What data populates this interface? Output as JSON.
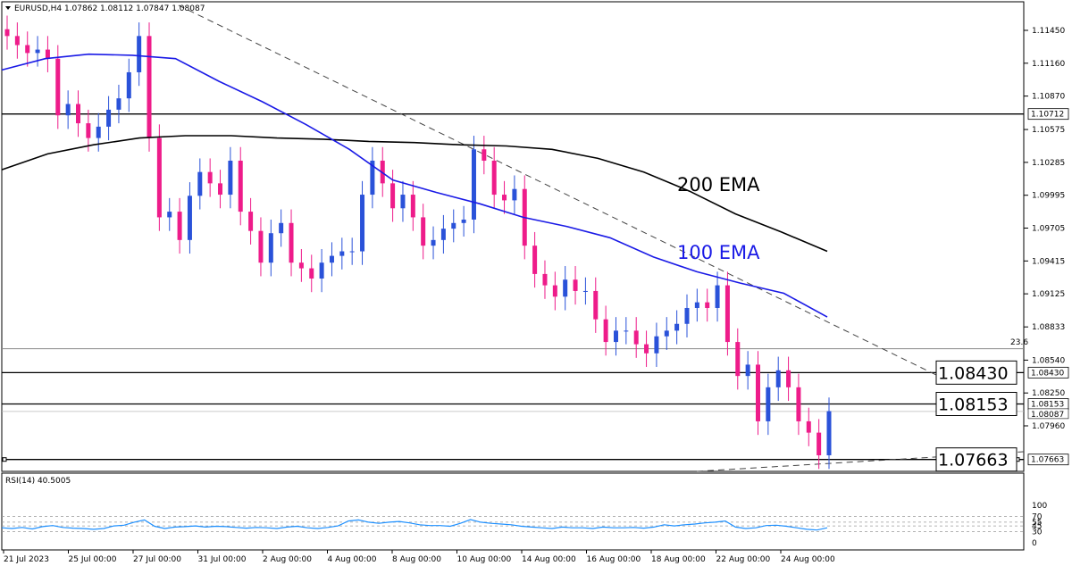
{
  "header": {
    "symbol_line": "EURUSD,H4  1.07862 1.08112 1.07847 1.08087"
  },
  "rsi_header": "RSI(14) 40.5005",
  "chart_data": {
    "type": "candlestick",
    "symbol": "EURUSD",
    "timeframe": "H4",
    "ohlc_current": {
      "open": 1.07862,
      "high": 1.08112,
      "low": 1.07847,
      "close": 1.08087
    },
    "price_ticks": [
      "1.11450",
      "1.11160",
      "1.10870",
      "1.10575",
      "1.10285",
      "1.09995",
      "1.09705",
      "1.09415",
      "1.09125",
      "1.08833",
      "1.08540",
      "1.08250",
      "1.07960"
    ],
    "price_range": [
      1.0753,
      1.116
    ],
    "time_ticks": [
      "21 Jul 2023",
      "25 Jul 00:00",
      "27 Jul 00:00",
      "31 Jul 00:00",
      "2 Aug 00:00",
      "4 Aug 00:00",
      "8 Aug 00:00",
      "10 Aug 00:00",
      "14 Aug 00:00",
      "16 Aug 00:00",
      "18 Aug 00:00",
      "22 Aug 00:00",
      "24 Aug 00:00"
    ],
    "horizontal_levels": [
      {
        "price": 1.10712,
        "axis_label": "1.10712"
      },
      {
        "price": 1.0843,
        "axis_label": "1.08430",
        "callout": "1.08430"
      },
      {
        "price": 1.08153,
        "axis_label": "1.08153",
        "callout": "1.08153"
      },
      {
        "price": 1.07663,
        "axis_label": "1.07663",
        "callout": "1.07663"
      }
    ],
    "fib_level": {
      "label": "23.6",
      "price": 1.0864
    },
    "current_price_label": "1.08087",
    "series": [
      {
        "name": "200 EMA",
        "color": "#000000",
        "values": [
          1.1022,
          1.1036,
          1.1044,
          1.105,
          1.1052,
          1.1052,
          1.105,
          1.1049,
          1.1047,
          1.1046,
          1.1044,
          1.1043,
          1.104,
          1.1032,
          1.102,
          1.1003,
          1.0983,
          1.0967,
          1.095
        ]
      },
      {
        "name": "100 EMA",
        "color": "#1a1ae6",
        "values": [
          1.111,
          1.112,
          1.1124,
          1.1123,
          1.112,
          1.11,
          1.1082,
          1.1062,
          1.104,
          1.1013,
          1.1002,
          1.0992,
          1.098,
          1.0972,
          1.0962,
          1.0945,
          1.0932,
          1.0922,
          1.0913,
          1.0892
        ]
      }
    ],
    "annotations": [
      "200 EMA",
      "100 EMA"
    ],
    "candles_summary": {
      "closes": [
        1.114,
        1.1132,
        1.1125,
        1.1128,
        1.112,
        1.107,
        1.108,
        1.1063,
        1.105,
        1.106,
        1.1075,
        1.1085,
        1.1108,
        1.114,
        1.105,
        1.098,
        1.0985,
        1.096,
        1.0999,
        1.102,
        1.101,
        1.1,
        1.103,
        1.0985,
        1.0968,
        1.094,
        1.0966,
        1.0975,
        1.094,
        1.0935,
        1.0926,
        1.094,
        1.0946,
        1.095,
        1.095,
        1.1,
        1.103,
        1.101,
        1.0988,
        1.1,
        1.098,
        1.0955,
        1.096,
        1.097,
        1.0975,
        1.0978,
        1.104,
        1.103,
        1.1,
        1.0995,
        1.1005,
        1.0955,
        1.093,
        1.092,
        1.091,
        1.0925,
        1.0915,
        1.0915,
        1.089,
        1.087,
        1.088,
        1.088,
        1.0868,
        1.086,
        1.0875,
        1.088,
        1.0886,
        1.09,
        1.0905,
        1.09,
        1.092,
        1.087,
        1.084,
        1.085,
        1.08,
        1.083,
        1.0845,
        1.083,
        1.08,
        1.079,
        1.077,
        1.0809
      ]
    },
    "rsi": {
      "name": "RSI(14)",
      "value": 40.5005,
      "ticks": [
        "100",
        "70",
        "55",
        "45",
        "30",
        "0"
      ],
      "levels": [
        70,
        55,
        45,
        30
      ],
      "values": [
        40,
        38,
        41,
        37,
        43,
        46,
        41,
        39,
        38,
        36,
        38,
        45,
        47,
        55,
        61,
        44,
        38,
        42,
        43,
        45,
        42,
        44,
        43,
        41,
        39,
        41,
        40,
        38,
        42,
        44,
        40,
        38,
        41,
        45,
        58,
        61,
        55,
        52,
        55,
        57,
        53,
        48,
        46,
        46,
        44,
        52,
        62,
        55,
        52,
        50,
        48,
        44,
        42,
        40,
        38,
        42,
        40,
        40,
        38,
        42,
        40,
        40,
        41,
        39,
        42,
        48,
        45,
        48,
        50,
        53,
        55,
        58,
        42,
        38,
        40,
        46,
        47,
        44,
        40,
        36,
        34,
        40
      ]
    }
  }
}
